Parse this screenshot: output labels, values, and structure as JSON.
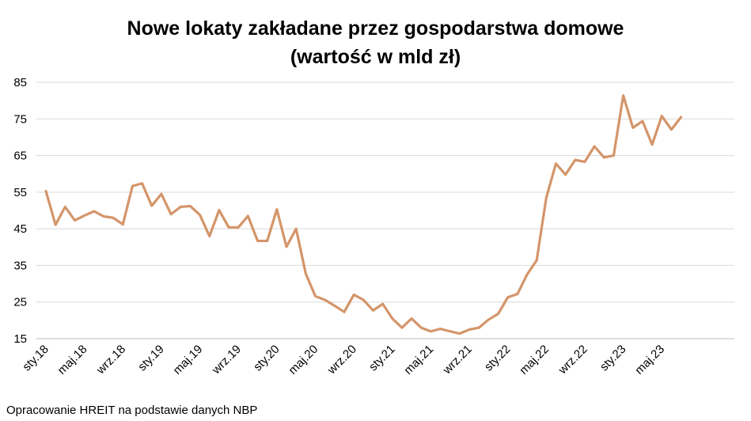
{
  "chart_data": {
    "type": "line",
    "title": "Nowe lokaty zakładane przez gospodarstwa domowe",
    "subtitle": "(wartość w mld zł)",
    "xlabel": "",
    "ylabel": "",
    "ylim": [
      15,
      85
    ],
    "yticks": [
      15,
      25,
      35,
      45,
      55,
      65,
      75,
      85
    ],
    "grid": true,
    "legend": "none",
    "color": "#D4956A",
    "x_tick_labels": [
      {
        "index": 0,
        "label": "sty.18"
      },
      {
        "index": 4,
        "label": "maj.18"
      },
      {
        "index": 8,
        "label": "wrz.18"
      },
      {
        "index": 12,
        "label": "sty.19"
      },
      {
        "index": 16,
        "label": "maj.19"
      },
      {
        "index": 20,
        "label": "wrz.19"
      },
      {
        "index": 24,
        "label": "sty.20"
      },
      {
        "index": 28,
        "label": "maj.20"
      },
      {
        "index": 32,
        "label": "wrz.20"
      },
      {
        "index": 36,
        "label": "sty.21"
      },
      {
        "index": 40,
        "label": "maj.21"
      },
      {
        "index": 44,
        "label": "wrz.21"
      },
      {
        "index": 48,
        "label": "sty.22"
      },
      {
        "index": 52,
        "label": "maj.22"
      },
      {
        "index": 56,
        "label": "wrz.22"
      },
      {
        "index": 60,
        "label": "sty.23"
      },
      {
        "index": 64,
        "label": "maj.23"
      }
    ],
    "values": [
      55.3,
      46.1,
      51.0,
      47.3,
      48.6,
      49.8,
      48.4,
      48.0,
      46.2,
      56.7,
      57.4,
      51.3,
      54.5,
      49.0,
      51.0,
      51.2,
      48.8,
      43.0,
      50.1,
      45.4,
      45.4,
      48.5,
      41.7,
      41.7,
      50.3,
      40.1,
      45.0,
      32.8,
      26.6,
      25.6,
      24.0,
      22.3,
      27.0,
      25.6,
      22.7,
      24.5,
      20.5,
      18.0,
      20.5,
      18.0,
      17.0,
      17.7,
      17.0,
      16.4,
      17.5,
      18.0,
      20.2,
      21.8,
      26.3,
      27.2,
      32.5,
      36.4,
      53.5,
      62.8,
      59.8,
      63.8,
      63.3,
      67.5,
      64.5,
      65.0,
      81.4,
      72.6,
      74.4,
      68.0,
      75.8,
      72.1,
      75.5
    ]
  },
  "footer": {
    "source": "Opracowanie HREIT na podstawie danych NBP"
  }
}
